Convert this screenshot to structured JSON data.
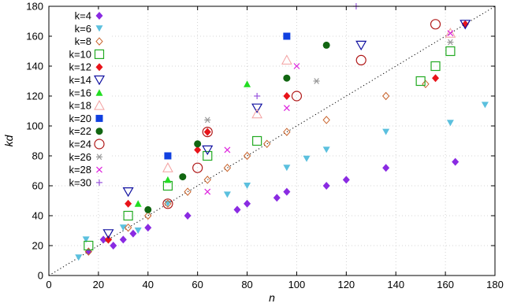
{
  "chart_data": {
    "type": "scatter",
    "xlabel": "n",
    "ylabel": "kd",
    "xlim": [
      0,
      180
    ],
    "ylim": [
      0,
      180
    ],
    "xticks": [
      0,
      20,
      40,
      60,
      80,
      100,
      120,
      140,
      160,
      180
    ],
    "yticks": [
      0,
      20,
      40,
      60,
      80,
      100,
      120,
      140,
      160,
      180
    ],
    "grid": true,
    "legend_position": "top-left",
    "reference_line": {
      "style": "dotted",
      "color": "#000000",
      "points": [
        [
          0,
          0
        ],
        [
          180,
          180
        ]
      ]
    },
    "series": [
      {
        "name": "k=4",
        "marker": "diamond-filled",
        "color": "#8a2be2",
        "points": [
          [
            16,
            16
          ],
          [
            22,
            24
          ],
          [
            26,
            20
          ],
          [
            30,
            24
          ],
          [
            34,
            28
          ],
          [
            40,
            32
          ],
          [
            56,
            40
          ],
          [
            76,
            44
          ],
          [
            80,
            48
          ],
          [
            92,
            52
          ],
          [
            96,
            56
          ],
          [
            112,
            60
          ],
          [
            120,
            64
          ],
          [
            136,
            72
          ],
          [
            164,
            76
          ]
        ]
      },
      {
        "name": "k=6",
        "marker": "triangle-down-filled",
        "color": "#5bc0de",
        "points": [
          [
            12,
            12
          ],
          [
            15,
            24
          ],
          [
            30,
            32
          ],
          [
            36,
            30
          ],
          [
            48,
            48
          ],
          [
            72,
            54
          ],
          [
            80,
            60
          ],
          [
            96,
            72
          ],
          [
            104,
            78
          ],
          [
            112,
            84
          ],
          [
            136,
            96
          ],
          [
            162,
            102
          ],
          [
            176,
            114
          ]
        ]
      },
      {
        "name": "k=8",
        "marker": "diamond-open",
        "color": "#c8622a",
        "points": [
          [
            16,
            16
          ],
          [
            24,
            24
          ],
          [
            32,
            32
          ],
          [
            40,
            40
          ],
          [
            48,
            48
          ],
          [
            56,
            56
          ],
          [
            64,
            64
          ],
          [
            72,
            72
          ],
          [
            80,
            80
          ],
          [
            88,
            88
          ],
          [
            96,
            96
          ],
          [
            112,
            104
          ],
          [
            136,
            120
          ],
          [
            152,
            128
          ]
        ]
      },
      {
        "name": "k=10",
        "marker": "square-open",
        "color": "#22aa22",
        "points": [
          [
            16,
            20
          ],
          [
            32,
            40
          ],
          [
            48,
            60
          ],
          [
            64,
            80
          ],
          [
            84,
            90
          ],
          [
            150,
            130
          ],
          [
            156,
            140
          ],
          [
            162,
            150
          ]
        ]
      },
      {
        "name": "k=12",
        "marker": "diamond-filled",
        "color": "#e8141a",
        "points": [
          [
            24,
            24
          ],
          [
            32,
            48
          ],
          [
            60,
            84
          ],
          [
            64,
            96
          ],
          [
            96,
            120
          ],
          [
            156,
            132
          ],
          [
            168,
            168
          ]
        ]
      },
      {
        "name": "k=14",
        "marker": "triangle-down-open",
        "color": "#1010a0",
        "points": [
          [
            24,
            28
          ],
          [
            32,
            56
          ],
          [
            64,
            84
          ],
          [
            84,
            112
          ],
          [
            126,
            154
          ],
          [
            168,
            168
          ]
        ]
      },
      {
        "name": "k=16",
        "marker": "triangle-up-filled",
        "color": "#22dd22",
        "points": [
          [
            36,
            48
          ],
          [
            48,
            64
          ],
          [
            80,
            128
          ]
        ]
      },
      {
        "name": "k=18",
        "marker": "triangle-up-open",
        "color": "#f3a0a0",
        "points": [
          [
            48,
            72
          ],
          [
            84,
            108
          ],
          [
            96,
            144
          ],
          [
            162,
            162
          ]
        ]
      },
      {
        "name": "k=20",
        "marker": "square-filled",
        "color": "#1040e0",
        "points": [
          [
            48,
            80
          ],
          [
            96,
            160
          ]
        ]
      },
      {
        "name": "k=22",
        "marker": "circle-filled",
        "color": "#116611",
        "points": [
          [
            40,
            44
          ],
          [
            54,
            66
          ],
          [
            60,
            88
          ],
          [
            96,
            132
          ],
          [
            112,
            154
          ]
        ]
      },
      {
        "name": "k=24",
        "marker": "circle-open",
        "color": "#b01818",
        "points": [
          [
            48,
            48
          ],
          [
            60,
            72
          ],
          [
            64,
            96
          ],
          [
            100,
            120
          ],
          [
            126,
            144
          ],
          [
            156,
            168
          ]
        ]
      },
      {
        "name": "k=26",
        "marker": "asterisk",
        "color": "#999999",
        "points": [
          [
            64,
            104
          ],
          [
            108,
            130
          ],
          [
            162,
            156
          ]
        ]
      },
      {
        "name": "k=28",
        "marker": "x",
        "color": "#dd22dd",
        "points": [
          [
            64,
            56
          ],
          [
            72,
            84
          ],
          [
            96,
            112
          ],
          [
            100,
            140
          ],
          [
            162,
            162
          ]
        ]
      },
      {
        "name": "k=30",
        "marker": "plus",
        "color": "#9955dd",
        "points": [
          [
            84,
            120
          ],
          [
            124,
            180
          ]
        ]
      }
    ]
  }
}
